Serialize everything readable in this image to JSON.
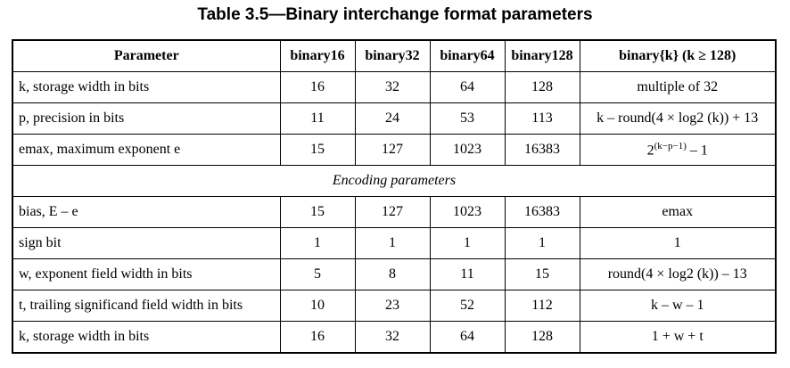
{
  "caption": "Table 3.5—Binary interchange format parameters",
  "headers": [
    "Parameter",
    "binary16",
    "binary32",
    "binary64",
    "binary128",
    "binary{k} (k ≥ 128)"
  ],
  "rows": [
    {
      "param": "k, storage width in bits",
      "b16": "16",
      "b32": "32",
      "b64": "64",
      "b128": "128",
      "bk": "multiple of 32"
    },
    {
      "param": "p, precision in bits",
      "b16": "11",
      "b32": "24",
      "b64": "53",
      "b128": "113",
      "bk": "k – round(4 × log2 (k)) + 13"
    },
    {
      "param": "emax, maximum exponent e",
      "b16": "15",
      "b32": "127",
      "b64": "1023",
      "b128": "16383",
      "bk_base": "2",
      "bk_exp": "(k−p−1)",
      "bk_tail": " – 1"
    }
  ],
  "section_label": "Encoding parameters",
  "enc_rows": [
    {
      "param": "bias, E – e",
      "b16": "15",
      "b32": "127",
      "b64": "1023",
      "b128": "16383",
      "bk": "emax"
    },
    {
      "param": "sign bit",
      "b16": "1",
      "b32": "1",
      "b64": "1",
      "b128": "1",
      "bk": "1"
    },
    {
      "param": "w, exponent field width in bits",
      "b16": "5",
      "b32": "8",
      "b64": "11",
      "b128": "15",
      "bk": "round(4 × log2 (k)) – 13"
    },
    {
      "param": "t, trailing significand field width in bits",
      "b16": "10",
      "b32": "23",
      "b64": "52",
      "b128": "112",
      "bk": "k – w – 1"
    },
    {
      "param": "k, storage width in bits",
      "b16": "16",
      "b32": "32",
      "b64": "64",
      "b128": "128",
      "bk": "1 + w + t"
    }
  ]
}
